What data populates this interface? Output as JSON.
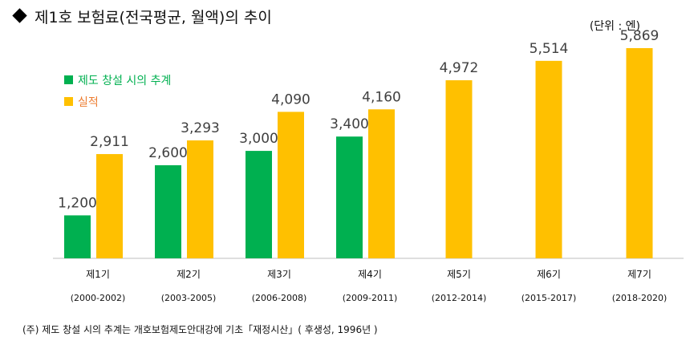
{
  "title": "제1호 보험료(전국평균, 월액)의 추이",
  "unit": "(단위 : 엔)",
  "footnote": "(주)  제도 창설 시의 추계는 개호보험제도안대강에 기초「재정시산」( 후생성, 1996년 )",
  "colors": {
    "plan": "#00b050",
    "actual": "#ffc000",
    "axis": "#bfbfbf",
    "legend_plan_text": "#00b050",
    "legend_actual_text": "#ed7d31"
  },
  "chart_data": {
    "type": "bar",
    "categories": [
      "제1기",
      "제2기",
      "제3기",
      "제4기",
      "제5기",
      "제6기",
      "제7기"
    ],
    "periods": [
      "(2000-2002)",
      "(2003-2005)",
      "(2006-2008)",
      "(2009-2011)",
      "(2012-2014)",
      "(2015-2017)",
      "(2018-2020)"
    ],
    "series": [
      {
        "name": "제도 창설 시의 추계",
        "values": [
          1200,
          2600,
          3000,
          3400,
          null,
          null,
          null
        ],
        "labels": [
          "1,200",
          "2,600",
          "3,000",
          "3,400",
          "",
          "",
          ""
        ]
      },
      {
        "name": "실적",
        "values": [
          2911,
          3293,
          4090,
          4160,
          4972,
          5514,
          5869
        ],
        "labels": [
          "2,911",
          "3,293",
          "4,090",
          "4,160",
          "4,972",
          "5,514",
          "5,869"
        ]
      }
    ],
    "ylim": [
      0,
      6500
    ],
    "grid": false,
    "legend": "top-left"
  }
}
